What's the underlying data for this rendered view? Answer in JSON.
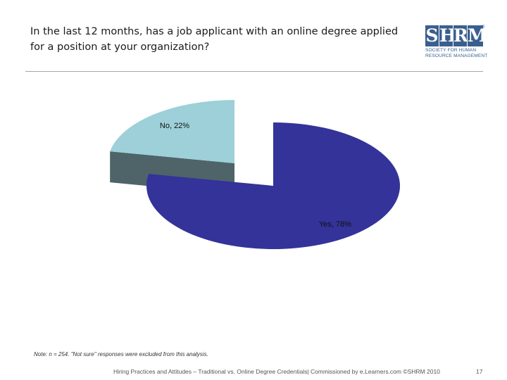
{
  "slide": {
    "title_lines": [
      "In the last 12 months, has a job applicant with an online degree applied",
      "for a position at your organization?"
    ],
    "note": "Note: n = 254. \"Not sure\" responses were excluded from this analysis.",
    "footer": "Hiring Practices and Attitudes – Traditional vs. Online Degree Credentials| Commissioned by e.Learners.com ©SHRM 2010",
    "page_number": "17"
  },
  "logo": {
    "letters": [
      "S",
      "H",
      "R",
      "M"
    ],
    "registered": "®",
    "subtitle_lines": [
      "SOCIETY FOR HUMAN",
      "RESOURCE MANAGEMENT"
    ],
    "color": "#3a5f8f"
  },
  "chart_data": {
    "type": "pie",
    "style": "3d-exploded",
    "categories": [
      "No",
      "Yes"
    ],
    "values": [
      22,
      78
    ],
    "data_labels": [
      "No, 22%",
      "Yes, 78%"
    ],
    "colors": [
      "#9dd0d9",
      "#333399"
    ],
    "side_colors": [
      "#4e6468",
      "#1b1b52"
    ]
  }
}
